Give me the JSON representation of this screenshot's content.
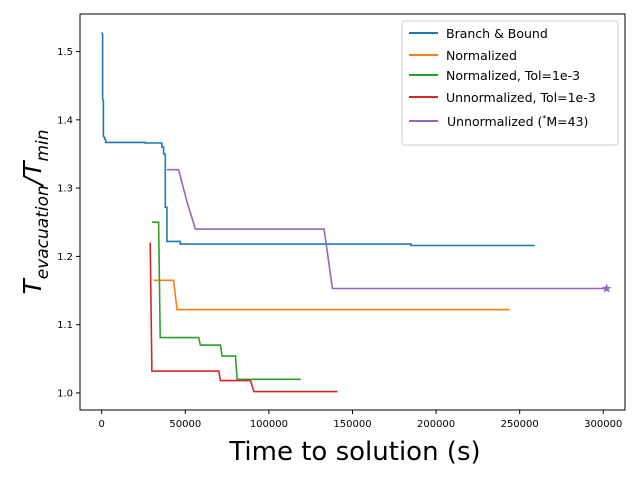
{
  "chart_data": {
    "type": "line",
    "title": "",
    "xlabel": "Time to solution (s)",
    "ylabel_main": "T",
    "ylabel_sub1": "evacuation",
    "ylabel_mid": "/T",
    "ylabel_sub2": "min",
    "xlim": [
      -13000,
      313000
    ],
    "ylim": [
      0.975,
      1.555
    ],
    "xticks": [
      0,
      50000,
      100000,
      150000,
      200000,
      250000,
      300000
    ],
    "xtick_labels": [
      "0",
      "50000",
      "100000",
      "150000",
      "200000",
      "250000",
      "300000"
    ],
    "yticks": [
      1.0,
      1.1,
      1.2,
      1.3,
      1.4,
      1.5
    ],
    "ytick_labels": [
      "1.0",
      "1.1",
      "1.2",
      "1.3",
      "1.4",
      "1.5"
    ],
    "grid": false,
    "legend_position": "top-right",
    "series": [
      {
        "name": "Branch & Bound",
        "color": "#1f77b4",
        "x": [
          0,
          500,
          500,
          1000,
          1000,
          1700,
          1700,
          2400,
          2400,
          26000,
          26000,
          36000,
          36000,
          37000,
          37000,
          38000,
          38000,
          39000,
          39000,
          40000,
          40000,
          47000,
          47000,
          185000,
          185000,
          259000
        ],
        "y": [
          1.528,
          1.525,
          1.43,
          1.428,
          1.376,
          1.374,
          1.372,
          1.371,
          1.367,
          1.367,
          1.366,
          1.366,
          1.36,
          1.36,
          1.35,
          1.35,
          1.272,
          1.272,
          1.222,
          1.222,
          1.222,
          1.222,
          1.218,
          1.218,
          1.216,
          1.216
        ]
      },
      {
        "name": "Normalized",
        "color": "#ff7f0e",
        "x": [
          31000,
          43000,
          45000,
          244000
        ],
        "y": [
          1.165,
          1.165,
          1.122,
          1.122
        ]
      },
      {
        "name": "Normalized, Tol=1e-3",
        "color": "#2ca02c",
        "x": [
          30000,
          34000,
          35000,
          58000,
          59000,
          71000,
          72000,
          80000,
          81000,
          87000,
          88000,
          119000
        ],
        "y": [
          1.25,
          1.25,
          1.081,
          1.081,
          1.07,
          1.07,
          1.054,
          1.054,
          1.02,
          1.02,
          1.02,
          1.02
        ]
      },
      {
        "name": "Unnormalized, Tol=1e-3",
        "color": "#d62728",
        "x": [
          29000,
          30000,
          70000,
          71000,
          89000,
          91000,
          141000
        ],
        "y": [
          1.22,
          1.032,
          1.032,
          1.018,
          1.018,
          1.002,
          1.002
        ]
      },
      {
        "name": "Unnormalized (*M=43)",
        "color": "#9467bd",
        "x": [
          39000,
          46000,
          51000,
          56000,
          57000,
          133000,
          134000,
          138000,
          302000
        ],
        "y": [
          1.327,
          1.327,
          1.28,
          1.24,
          1.24,
          1.24,
          1.222,
          1.153,
          1.153
        ]
      }
    ],
    "marker": {
      "x": 302000,
      "y": 1.153,
      "color": "#9467bd",
      "symbol": "star"
    }
  },
  "legend": [
    {
      "label": "Branch & Bound"
    },
    {
      "label": "Normalized"
    },
    {
      "label": "Normalized, Tol=1e-3"
    },
    {
      "label": "Unnormalized, Tol=1e-3"
    },
    {
      "label_pre": "Unnormalized (",
      "label_sup": "*",
      "label_post": "M=43)"
    }
  ]
}
